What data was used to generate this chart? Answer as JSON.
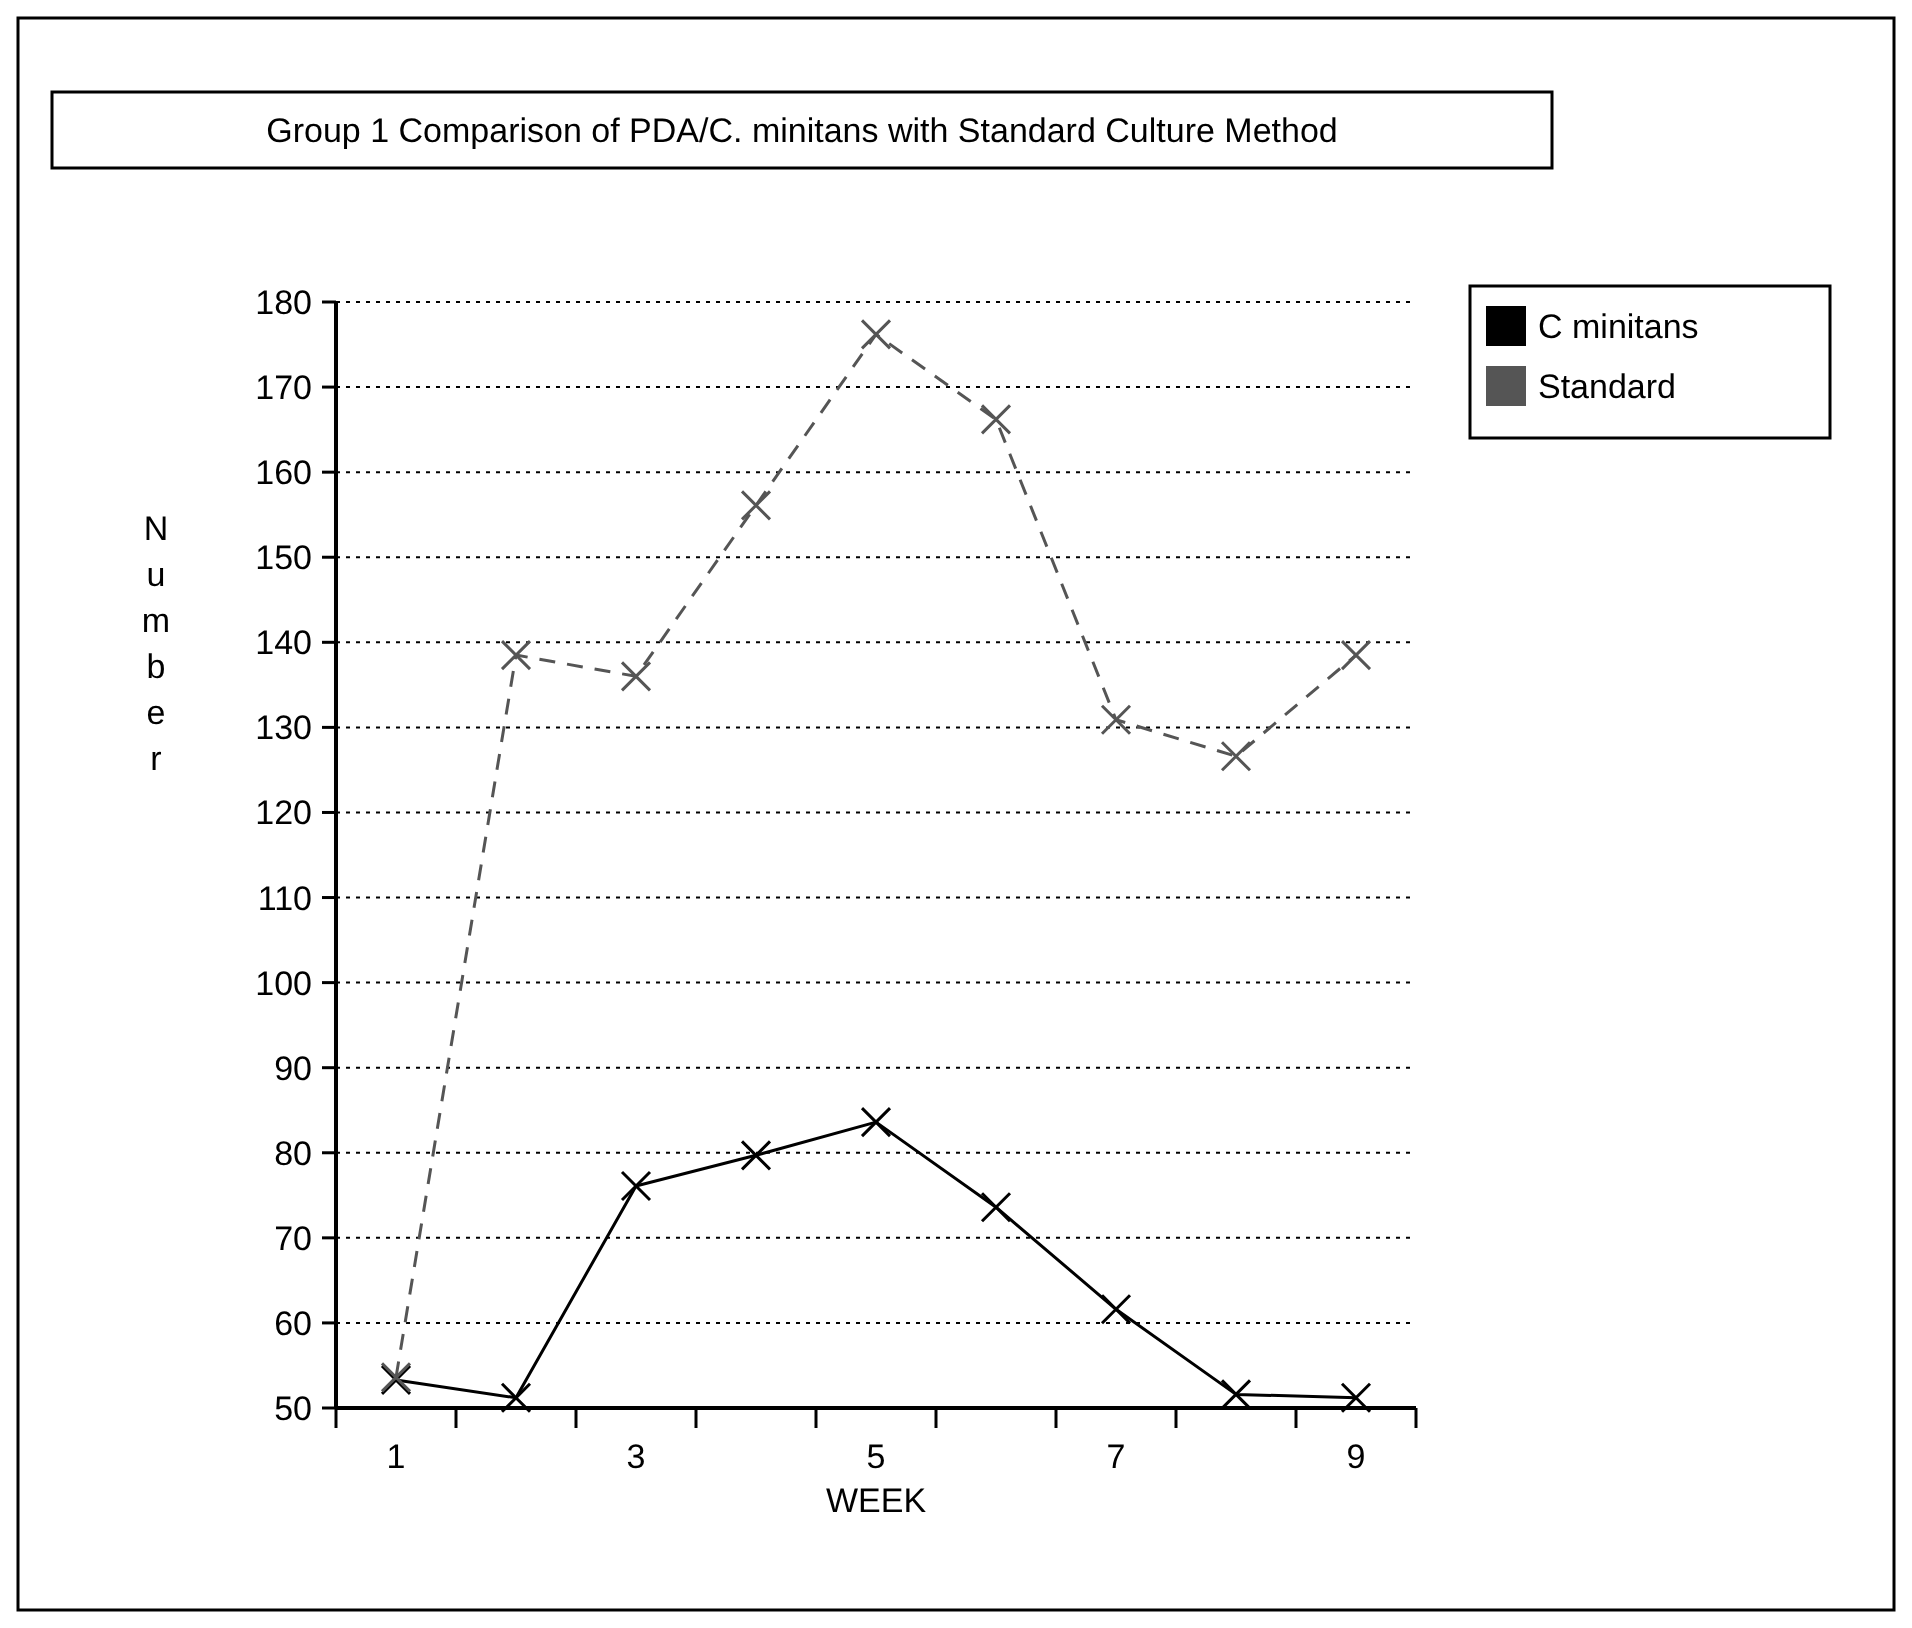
{
  "chart_data": {
    "type": "line",
    "title": "Group 1 Comparison of PDA/C. minitans with Standard Culture Method",
    "xlabel": "WEEK",
    "ylabel": "Number",
    "categories": [
      "1",
      null,
      "3",
      null,
      "5",
      null,
      "7",
      null,
      "9"
    ],
    "series": [
      {
        "name": "C minitans",
        "color": "#000000",
        "line_style": "solid",
        "values": [
          53.3,
          51.2,
          76.1,
          79.7,
          83.6,
          73.6,
          61.6,
          51.6,
          51.2
        ]
      },
      {
        "name": "Standard",
        "color": "#555555",
        "line_style": "dashed",
        "values": [
          53.6,
          138.5,
          136,
          156.1,
          176.2,
          166.2,
          130.9,
          126.6,
          138.5
        ]
      }
    ],
    "ylim": [
      50,
      180
    ],
    "yticks": [
      50,
      60,
      70,
      80,
      90,
      100,
      110,
      120,
      130,
      140,
      150,
      160,
      170,
      180
    ],
    "grid": "y",
    "legend": "top right",
    "marker": "cross"
  }
}
